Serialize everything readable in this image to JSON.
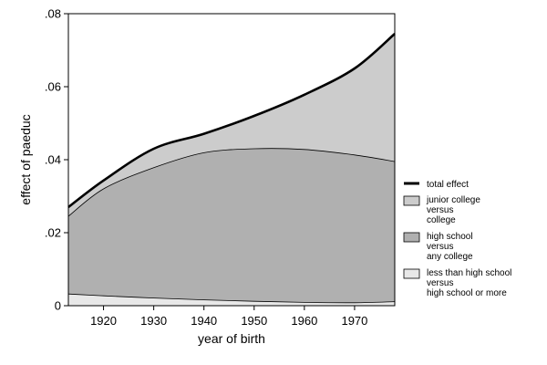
{
  "chart_data": {
    "type": "area",
    "xlabel": "year of birth",
    "ylabel": "effect of paeduc",
    "xlim": [
      1913,
      1978
    ],
    "ylim": [
      0,
      0.08
    ],
    "x_ticks": [
      1920,
      1930,
      1940,
      1950,
      1960,
      1970
    ],
    "x_tick_labels": [
      "1920",
      "1930",
      "1940",
      "1950",
      "1960",
      "1970"
    ],
    "y_ticks": [
      0,
      0.02,
      0.04,
      0.06,
      0.08
    ],
    "y_tick_labels": [
      "0",
      ".02",
      ".04",
      ".06",
      ".08"
    ],
    "grid": false,
    "legend_position": "right",
    "x": [
      1913,
      1920,
      1930,
      1940,
      1950,
      1960,
      1970,
      1978
    ],
    "series": [
      {
        "name": "less than high school versus high school or more",
        "legend_lines": [
          "less than high school",
          "versus",
          "high school or more"
        ],
        "kind": "area",
        "color": "#e8e8e8",
        "values": [
          0.0032,
          0.0027,
          0.0021,
          0.0016,
          0.0012,
          0.0009,
          0.0008,
          0.0011
        ]
      },
      {
        "name": "high school versus any college",
        "legend_lines": [
          "high school",
          "versus",
          "any college"
        ],
        "kind": "area",
        "color": "#b0b0b0",
        "values": [
          0.0213,
          0.0293,
          0.0357,
          0.0403,
          0.0418,
          0.0419,
          0.0405,
          0.0384
        ]
      },
      {
        "name": "junior college versus college",
        "legend_lines": [
          "junior college",
          "versus",
          "college"
        ],
        "kind": "area",
        "color": "#cccccc",
        "values": [
          0.0025,
          0.0023,
          0.0052,
          0.0052,
          0.009,
          0.015,
          0.0237,
          0.035
        ]
      },
      {
        "name": "total effect",
        "legend_lines": [
          "total effect"
        ],
        "kind": "line",
        "color": "#000000",
        "values": [
          0.027,
          0.0343,
          0.043,
          0.0471,
          0.052,
          0.0578,
          0.065,
          0.0745
        ]
      }
    ]
  }
}
